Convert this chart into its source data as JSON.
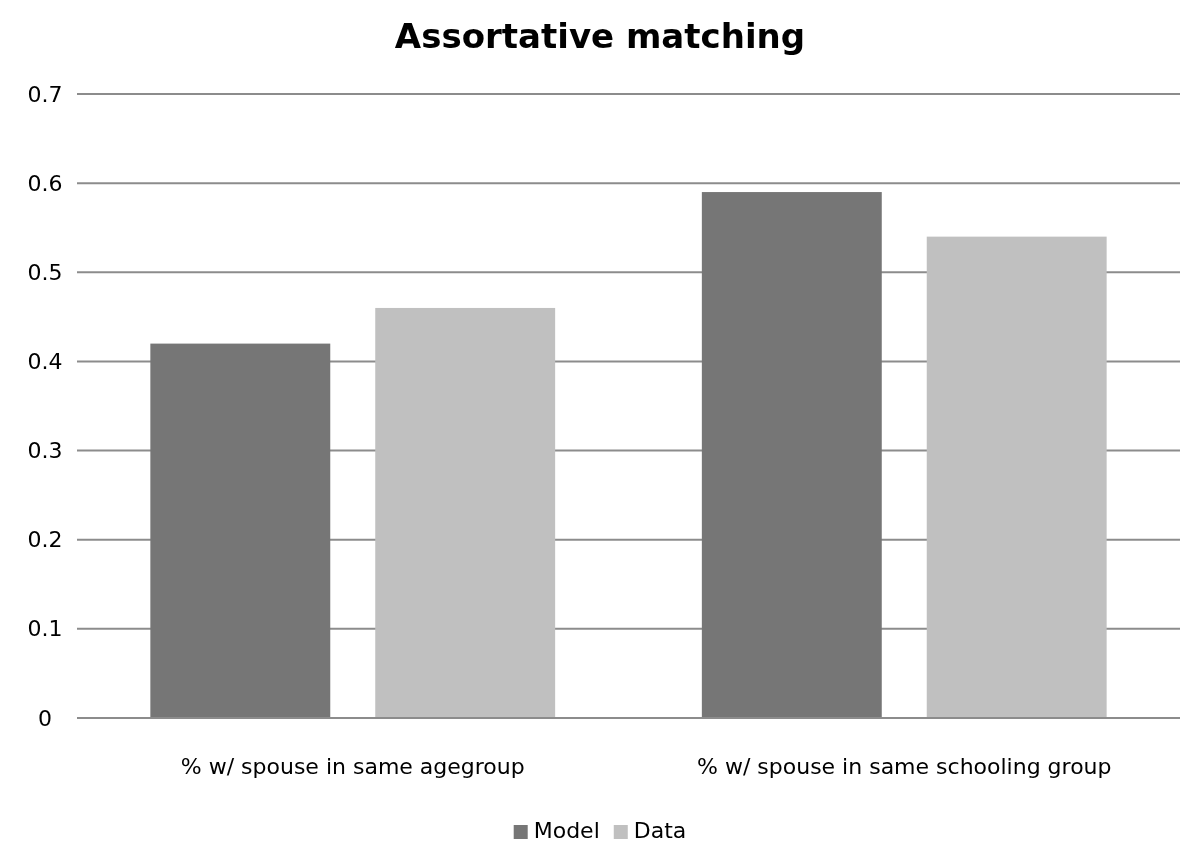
{
  "chart_data": {
    "type": "bar",
    "title": "Assortative matching",
    "categories": [
      "% w/ spouse in same agegroup",
      "% w/ spouse in same schooling group"
    ],
    "series": [
      {
        "name": "Model",
        "color": "#767676",
        "values": [
          0.42,
          0.59
        ]
      },
      {
        "name": "Data",
        "color": "#c0c0c0",
        "values": [
          0.46,
          0.54
        ]
      }
    ],
    "ylim": [
      0,
      0.7
    ],
    "yticks": [
      0,
      0.1,
      0.2,
      0.3,
      0.4,
      0.5,
      0.6,
      0.7
    ],
    "grid": "y",
    "legend": "bottom"
  }
}
